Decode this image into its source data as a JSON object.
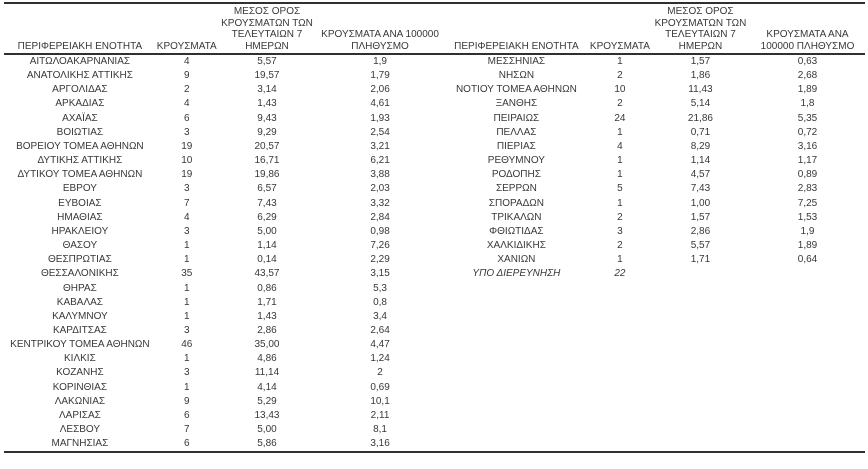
{
  "page": {
    "background_color": "#ffffff",
    "text_color": "#383838",
    "rule_color": "#303030"
  },
  "tables": [
    {
      "name": "cases-by-region-left",
      "headers": [
        [
          "ΠΕΡΙΦΕΡΕΙΑΚΗ ΕΝΟΤΗΤΑ"
        ],
        [
          "ΚΡΟΥΣΜΑΤΑ"
        ],
        [
          "ΜΕΣΟΣ ΟΡΟΣ",
          "ΚΡΟΥΣΜΑΤΩΝ ΤΩΝ",
          "ΤΕΛΕΥΤΑΙΩΝ 7",
          "ΗΜΕΡΩΝ"
        ],
        [
          "ΚΡΟΥΣΜΑΤΑ ΑΝΑ 100000",
          "ΠΛΗΘΥΣΜΟ"
        ]
      ],
      "rows": [
        [
          "ΑΙΤΩΛΟΑΚΑΡΝΑΝΙΑΣ",
          "4",
          "5,57",
          "1,9"
        ],
        [
          "ΑΝΑΤΟΛΙΚΗΣ ΑΤΤΙΚΗΣ",
          "9",
          "19,57",
          "1,79"
        ],
        [
          "ΑΡΓΟΛΙΔΑΣ",
          "2",
          "3,14",
          "2,06"
        ],
        [
          "ΑΡΚΑΔΙΑΣ",
          "4",
          "1,43",
          "4,61"
        ],
        [
          "ΑΧΑΪΑΣ",
          "6",
          "9,43",
          "1,93"
        ],
        [
          "ΒΟΙΩΤΙΑΣ",
          "3",
          "9,29",
          "2,54"
        ],
        [
          "ΒΟΡΕΙΟΥ ΤΟΜΕΑ ΑΘΗΝΩΝ",
          "19",
          "20,57",
          "3,21"
        ],
        [
          "ΔΥΤΙΚΗΣ ΑΤΤΙΚΗΣ",
          "10",
          "16,71",
          "6,21"
        ],
        [
          "ΔΥΤΙΚΟΥ ΤΟΜΕΑ ΑΘΗΝΩΝ",
          "19",
          "19,86",
          "3,88"
        ],
        [
          "ΕΒΡΟΥ",
          "3",
          "6,57",
          "2,03"
        ],
        [
          "ΕΥΒΟΙΑΣ",
          "7",
          "7,43",
          "3,32"
        ],
        [
          "ΗΜΑΘΙΑΣ",
          "4",
          "6,29",
          "2,84"
        ],
        [
          "ΗΡΑΚΛΕΙΟΥ",
          "3",
          "5,00",
          "0,98"
        ],
        [
          "ΘΑΣΟΥ",
          "1",
          "1,14",
          "7,26"
        ],
        [
          "ΘΕΣΠΡΩΤΙΑΣ",
          "1",
          "0,14",
          "2,29"
        ],
        [
          "ΘΕΣΣΑΛΟΝΙΚΗΣ",
          "35",
          "43,57",
          "3,15"
        ],
        [
          "ΘΗΡΑΣ",
          "1",
          "0,86",
          "5,3"
        ],
        [
          "ΚΑΒΑΛΑΣ",
          "1",
          "1,71",
          "0,8"
        ],
        [
          "ΚΑΛΥΜΝΟΥ",
          "1",
          "1,43",
          "3,4"
        ],
        [
          "ΚΑΡΔΙΤΣΑΣ",
          "3",
          "2,86",
          "2,64"
        ],
        [
          "ΚΕΝΤΡΙΚΟΥ ΤΟΜΕΑ ΑΘΗΝΩΝ",
          "46",
          "35,00",
          "4,47"
        ],
        [
          "ΚΙΛΚΙΣ",
          "1",
          "4,86",
          "1,24"
        ],
        [
          "ΚΟΖΑΝΗΣ",
          "3",
          "11,14",
          "2"
        ],
        [
          "ΚΟΡΙΝΘΙΑΣ",
          "1",
          "4,14",
          "0,69"
        ],
        [
          "ΛΑΚΩΝΙΑΣ",
          "9",
          "5,29",
          "10,1"
        ],
        [
          "ΛΑΡΙΣΑΣ",
          "6",
          "13,43",
          "2,11"
        ],
        [
          "ΛΕΣΒΟΥ",
          "7",
          "5,00",
          "8,1"
        ],
        [
          "ΜΑΓΝΗΣΙΑΣ",
          "6",
          "5,86",
          "3,16"
        ]
      ]
    },
    {
      "name": "cases-by-region-right",
      "headers": [
        [
          "ΠΕΡΙΦΕΡΕΙΑΚΗ ΕΝΟΤΗΤΑ"
        ],
        [
          "ΚΡΟΥΣΜΑΤΑ"
        ],
        [
          "ΜΕΣΟΣ ΟΡΟΣ",
          "ΚΡΟΥΣΜΑΤΩΝ ΤΩΝ",
          "ΤΕΛΕΥΤΑΙΩΝ 7",
          "ΗΜΕΡΩΝ"
        ],
        [
          "ΚΡΟΥΣΜΑΤΑ ΑΝΑ",
          "100000 ΠΛΗΘΥΣΜΟ"
        ]
      ],
      "rows": [
        [
          "ΜΕΣΣΗΝΙΑΣ",
          "1",
          "1,57",
          "0,63"
        ],
        [
          "ΝΗΣΩΝ",
          "2",
          "1,86",
          "2,68"
        ],
        [
          "ΝΟΤΙΟΥ ΤΟΜΕΑ ΑΘΗΝΩΝ",
          "10",
          "11,43",
          "1,89"
        ],
        [
          "ΞΑΝΘΗΣ",
          "2",
          "5,14",
          "1,8"
        ],
        [
          "ΠΕΙΡΑΙΩΣ",
          "24",
          "21,86",
          "5,35"
        ],
        [
          "ΠΕΛΛΑΣ",
          "1",
          "0,71",
          "0,72"
        ],
        [
          "ΠΙΕΡΙΑΣ",
          "4",
          "8,29",
          "3,16"
        ],
        [
          "ΡΕΘΥΜΝΟΥ",
          "1",
          "1,14",
          "1,17"
        ],
        [
          "ΡΟΔΟΠΗΣ",
          "1",
          "4,57",
          "0,89"
        ],
        [
          "ΣΕΡΡΩΝ",
          "5",
          "7,43",
          "2,83"
        ],
        [
          "ΣΠΟΡΑΔΩΝ",
          "1",
          "1,00",
          "7,25"
        ],
        [
          "ΤΡΙΚΑΛΩΝ",
          "2",
          "1,57",
          "1,53"
        ],
        [
          "ΦΘΙΩΤΙΔΑΣ",
          "3",
          "2,86",
          "1,9"
        ],
        [
          "ΧΑΛΚΙΔΙΚΗΣ",
          "2",
          "5,57",
          "1,89"
        ],
        [
          "ΧΑΝΙΩΝ",
          "1",
          "1,71",
          "0,64"
        ]
      ],
      "footer_row": {
        "cells": [
          "ΥΠΟ ΔΙΕΡΕΥΝΗΣΗ",
          "22",
          "",
          ""
        ],
        "italic": true
      }
    }
  ]
}
